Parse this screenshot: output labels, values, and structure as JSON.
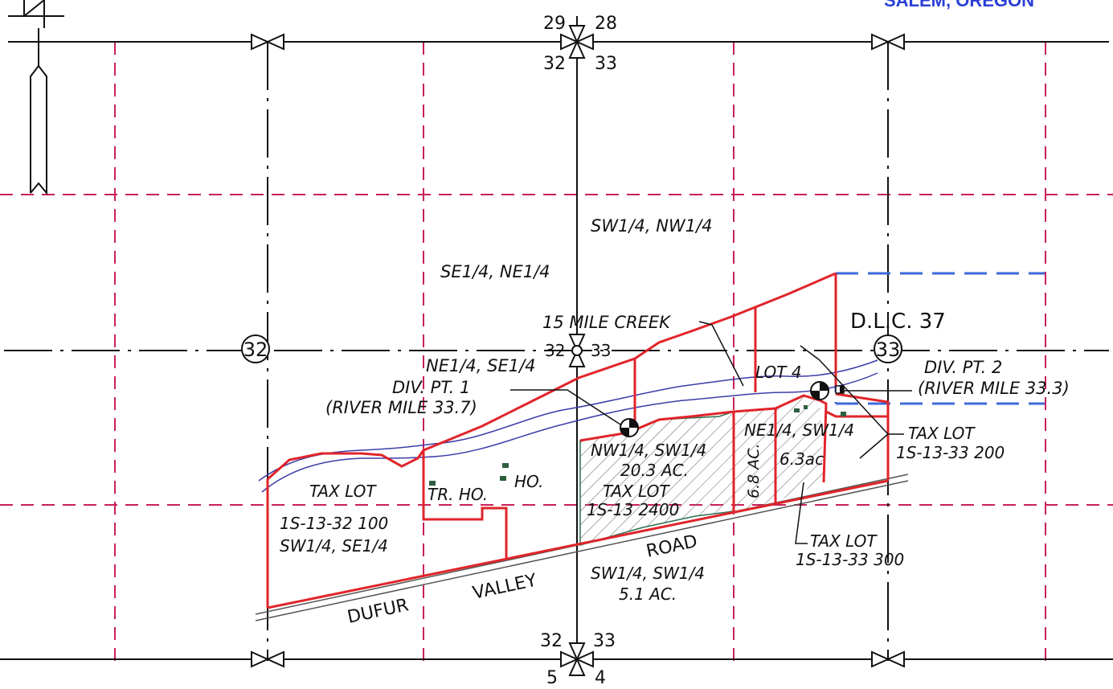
{
  "colors": {
    "grid_dash": "#c8205a",
    "section_line": "#111111",
    "tax_lot_boundary": "#e0242a",
    "creek": "#3c3ca8",
    "dlc_boundary": "#3c6ad8",
    "road": "#555555",
    "structure": "#2d5f3f",
    "header_text": "#2a3fd6"
  },
  "header": {
    "location": "SALEM, OREGON"
  },
  "corners": {
    "top_center": [
      "29",
      "28",
      "32",
      "33"
    ],
    "mid_center": [
      "32",
      "33"
    ],
    "bottom_center": [
      "32",
      "33",
      "5",
      "4"
    ]
  },
  "section_numbers": {
    "left": "32",
    "right": "33"
  },
  "labels": {
    "sw_nw": "SW1/4, NW1/4",
    "se_ne": "SE1/4, NE1/4",
    "creek": "15 MILE CREEK",
    "dlc": "D.L.C. 37",
    "ne_se": "NE1/4, SE1/4",
    "div_pt_1": "DIV. PT. 1",
    "river_mile_1": "(RIVER MILE 33.7)",
    "div_pt_2": "DIV. PT. 2",
    "river_mile_2": "(RIVER MILE 33.3)",
    "lot_4": "LOT 4",
    "nw_sw": "NW1/4, SW1/4",
    "acres_20_3": "20.3 AC.",
    "tax_lot_2400_a": "TAX LOT",
    "tax_lot_2400_b": "1S-13  2400",
    "acres_6_8": "6.8 AC.",
    "ne_sw": "NE1/4, SW1/4",
    "acres_6_3": "6.3ac",
    "tax_lot_200_a": "TAX LOT",
    "tax_lot_200_b": "1S-13-33  200",
    "tax_lot_300_a": "TAX LOT",
    "tax_lot_300_b": "1S-13-33  300",
    "tax_lot_100_a": "TAX LOT",
    "tax_lot_100_b": "1S-13-32  100",
    "sw_se": "SW1/4, SE1/4",
    "tr_ho": "TR. HO.",
    "ho": "HO.",
    "sw_sw": "SW1/4, SW1/4",
    "acres_5_1": "5.1 AC.",
    "road_dufur": "DUFUR",
    "road_valley": "VALLEY",
    "road_road": "ROAD"
  },
  "icons": [
    "north-arrow-icon",
    "section-corner-icon",
    "diversion-point-icon",
    "structure-icon"
  ]
}
